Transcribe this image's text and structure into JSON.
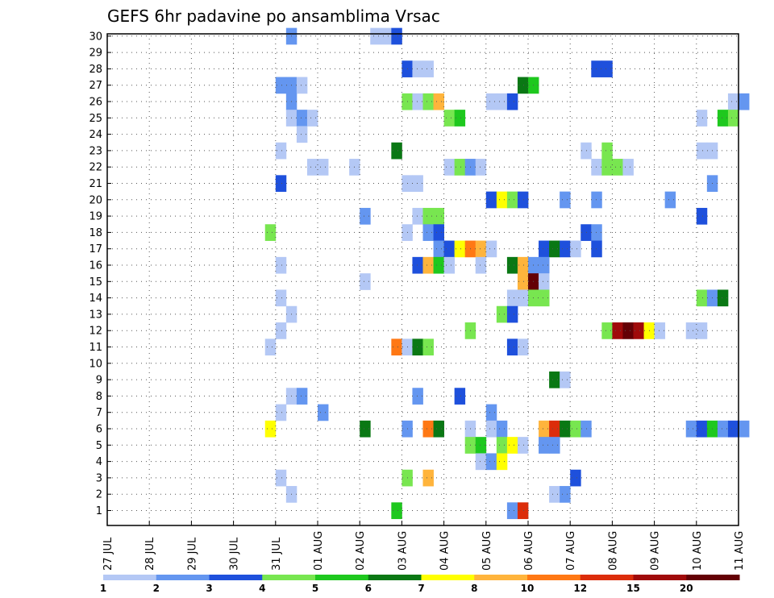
{
  "chart_data": {
    "type": "heatmap",
    "title": "GEFS 6hr padavine po ansamblima Vrsac",
    "x_ticks": [
      "27 JUL",
      "28 JUL",
      "29 JUL",
      "30 JUL",
      "31 JUL",
      "01 AUG",
      "02 AUG",
      "03 AUG",
      "04 AUG",
      "05 AUG",
      "06 AUG",
      "07 AUG",
      "08 AUG",
      "09 AUG",
      "10 AUG",
      "11 AUG"
    ],
    "y_ticks": [
      "1",
      "2",
      "3",
      "4",
      "5",
      "6",
      "7",
      "8",
      "9",
      "10",
      "11",
      "12",
      "13",
      "14",
      "15",
      "16",
      "17",
      "18",
      "19",
      "20",
      "21",
      "22",
      "23",
      "24",
      "25",
      "26",
      "27",
      "28",
      "29",
      "30"
    ],
    "x_step": "6 hours",
    "colorbar": {
      "labels": [
        "1",
        "2",
        "3",
        "4",
        "5",
        "6",
        "7",
        "8",
        "10",
        "12",
        "15",
        "20"
      ],
      "colors": [
        "#b4c8f5",
        "#6496f0",
        "#1e50dc",
        "#78e650",
        "#1ec81e",
        "#0a7814",
        "#ffff00",
        "#ffb43c",
        "#ff7814",
        "#dc2d0a",
        "#a00a0a",
        "#640005"
      ]
    },
    "grid": true,
    "cells_note": "Each cell = [member, 6h step index from 27 JUL 00Z, color class index 1-12]",
    "cells": [
      [
        30,
        17,
        2
      ],
      [
        30,
        25,
        1
      ],
      [
        30,
        26,
        1
      ],
      [
        30,
        27,
        3
      ],
      [
        28,
        28,
        3
      ],
      [
        28,
        29,
        1
      ],
      [
        28,
        30,
        1
      ],
      [
        28,
        46,
        3
      ],
      [
        28,
        47,
        3
      ],
      [
        27,
        16,
        2
      ],
      [
        27,
        17,
        2
      ],
      [
        27,
        18,
        1
      ],
      [
        27,
        39,
        6
      ],
      [
        27,
        40,
        5
      ],
      [
        26,
        17,
        2
      ],
      [
        26,
        28,
        4
      ],
      [
        26,
        29,
        1
      ],
      [
        26,
        30,
        4
      ],
      [
        26,
        31,
        8
      ],
      [
        26,
        36,
        1
      ],
      [
        26,
        37,
        1
      ],
      [
        26,
        38,
        3
      ],
      [
        26,
        59,
        1
      ],
      [
        26,
        60,
        2
      ],
      [
        25,
        17,
        1
      ],
      [
        25,
        18,
        2
      ],
      [
        25,
        19,
        1
      ],
      [
        25,
        32,
        4
      ],
      [
        25,
        33,
        5
      ],
      [
        25,
        56,
        1
      ],
      [
        25,
        58,
        5
      ],
      [
        25,
        59,
        4
      ],
      [
        24,
        18,
        1
      ],
      [
        23,
        16,
        1
      ],
      [
        23,
        27,
        6
      ],
      [
        23,
        45,
        1
      ],
      [
        23,
        47,
        4
      ],
      [
        23,
        56,
        1
      ],
      [
        23,
        57,
        1
      ],
      [
        22,
        19,
        1
      ],
      [
        22,
        20,
        1
      ],
      [
        22,
        23,
        1
      ],
      [
        22,
        32,
        1
      ],
      [
        22,
        33,
        4
      ],
      [
        22,
        34,
        2
      ],
      [
        22,
        35,
        1
      ],
      [
        22,
        46,
        1
      ],
      [
        22,
        47,
        4
      ],
      [
        22,
        48,
        4
      ],
      [
        22,
        49,
        1
      ],
      [
        21,
        16,
        3
      ],
      [
        21,
        28,
        1
      ],
      [
        21,
        29,
        1
      ],
      [
        21,
        57,
        2
      ],
      [
        20,
        36,
        3
      ],
      [
        20,
        37,
        7
      ],
      [
        20,
        38,
        4
      ],
      [
        20,
        39,
        3
      ],
      [
        20,
        43,
        2
      ],
      [
        20,
        46,
        2
      ],
      [
        20,
        53,
        2
      ],
      [
        19,
        24,
        2
      ],
      [
        19,
        29,
        1
      ],
      [
        19,
        30,
        4
      ],
      [
        19,
        31,
        4
      ],
      [
        19,
        56,
        3
      ],
      [
        18,
        15,
        4
      ],
      [
        18,
        28,
        1
      ],
      [
        18,
        30,
        2
      ],
      [
        18,
        31,
        3
      ],
      [
        18,
        45,
        3
      ],
      [
        18,
        46,
        2
      ],
      [
        17,
        31,
        2
      ],
      [
        17,
        32,
        3
      ],
      [
        17,
        33,
        7
      ],
      [
        17,
        34,
        9
      ],
      [
        17,
        35,
        8
      ],
      [
        17,
        36,
        1
      ],
      [
        17,
        41,
        3
      ],
      [
        17,
        42,
        6
      ],
      [
        17,
        43,
        3
      ],
      [
        17,
        44,
        1
      ],
      [
        17,
        46,
        3
      ],
      [
        16,
        16,
        1
      ],
      [
        16,
        29,
        3
      ],
      [
        16,
        30,
        8
      ],
      [
        16,
        31,
        5
      ],
      [
        16,
        32,
        1
      ],
      [
        16,
        35,
        1
      ],
      [
        16,
        38,
        6
      ],
      [
        16,
        39,
        8
      ],
      [
        16,
        40,
        2
      ],
      [
        16,
        41,
        2
      ],
      [
        15,
        24,
        1
      ],
      [
        15,
        39,
        8
      ],
      [
        15,
        40,
        12
      ],
      [
        15,
        41,
        1
      ],
      [
        14,
        16,
        1
      ],
      [
        14,
        38,
        1
      ],
      [
        14,
        39,
        1
      ],
      [
        14,
        40,
        4
      ],
      [
        14,
        41,
        4
      ],
      [
        14,
        56,
        4
      ],
      [
        14,
        57,
        2
      ],
      [
        14,
        58,
        6
      ],
      [
        13,
        17,
        1
      ],
      [
        13,
        37,
        4
      ],
      [
        13,
        38,
        3
      ],
      [
        12,
        16,
        1
      ],
      [
        12,
        34,
        4
      ],
      [
        12,
        47,
        4
      ],
      [
        12,
        48,
        11
      ],
      [
        12,
        49,
        12
      ],
      [
        12,
        50,
        11
      ],
      [
        12,
        51,
        7
      ],
      [
        12,
        52,
        1
      ],
      [
        12,
        55,
        1
      ],
      [
        12,
        56,
        1
      ],
      [
        11,
        15,
        1
      ],
      [
        11,
        27,
        9
      ],
      [
        11,
        28,
        1
      ],
      [
        11,
        29,
        6
      ],
      [
        11,
        30,
        4
      ],
      [
        11,
        38,
        3
      ],
      [
        11,
        39,
        1
      ],
      [
        9,
        42,
        6
      ],
      [
        9,
        43,
        1
      ],
      [
        8,
        17,
        1
      ],
      [
        8,
        18,
        2
      ],
      [
        8,
        29,
        2
      ],
      [
        8,
        33,
        3
      ],
      [
        7,
        16,
        1
      ],
      [
        7,
        20,
        2
      ],
      [
        7,
        36,
        2
      ],
      [
        6,
        15,
        7
      ],
      [
        6,
        24,
        6
      ],
      [
        6,
        28,
        2
      ],
      [
        6,
        30,
        9
      ],
      [
        6,
        31,
        6
      ],
      [
        6,
        34,
        1
      ],
      [
        6,
        36,
        1
      ],
      [
        6,
        37,
        2
      ],
      [
        6,
        41,
        8
      ],
      [
        6,
        42,
        10
      ],
      [
        6,
        43,
        6
      ],
      [
        6,
        44,
        4
      ],
      [
        6,
        45,
        2
      ],
      [
        6,
        55,
        2
      ],
      [
        6,
        56,
        3
      ],
      [
        6,
        57,
        5
      ],
      [
        6,
        58,
        2
      ],
      [
        6,
        59,
        3
      ],
      [
        6,
        60,
        2
      ],
      [
        5,
        34,
        4
      ],
      [
        5,
        35,
        5
      ],
      [
        5,
        37,
        4
      ],
      [
        5,
        38,
        7
      ],
      [
        5,
        39,
        1
      ],
      [
        5,
        41,
        2
      ],
      [
        5,
        42,
        2
      ],
      [
        4,
        35,
        1
      ],
      [
        4,
        36,
        2
      ],
      [
        4,
        37,
        7
      ],
      [
        3,
        16,
        1
      ],
      [
        3,
        28,
        4
      ],
      [
        3,
        30,
        8
      ],
      [
        3,
        44,
        3
      ],
      [
        2,
        17,
        1
      ],
      [
        2,
        42,
        1
      ],
      [
        2,
        43,
        2
      ],
      [
        1,
        27,
        5
      ],
      [
        1,
        38,
        2
      ],
      [
        1,
        39,
        10
      ]
    ]
  }
}
